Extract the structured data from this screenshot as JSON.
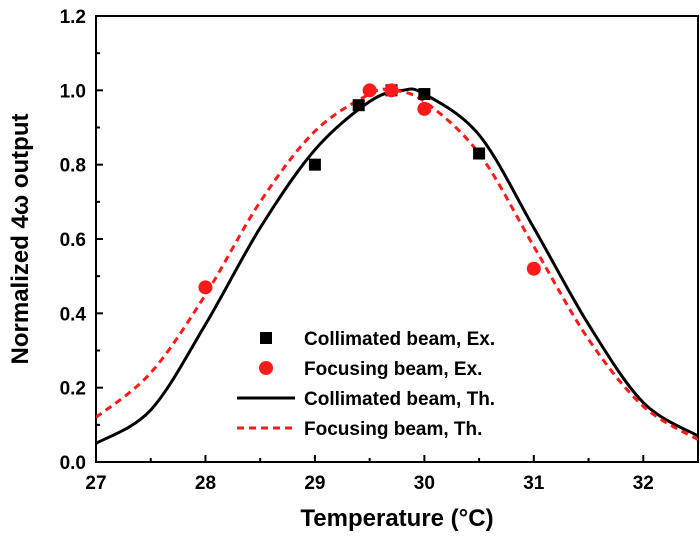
{
  "chart_data": {
    "type": "scatter",
    "title": "",
    "xlabel": "Temperature (°C)",
    "ylabel": "Normalized 4ω output",
    "xlim": [
      27,
      32.5
    ],
    "ylim": [
      0.0,
      1.2
    ],
    "x_ticks": [
      "27",
      "28",
      "29",
      "30",
      "31",
      "32"
    ],
    "y_ticks": [
      "0.0",
      "0.2",
      "0.4",
      "0.6",
      "0.8",
      "1.0",
      "1.2"
    ],
    "grid": false,
    "legend_position": "bottom-center",
    "series": [
      {
        "name": "Collimated beam, Ex.",
        "kind": "points",
        "marker": "square",
        "color": "#000000",
        "points": [
          {
            "x": 29.0,
            "y": 0.8
          },
          {
            "x": 29.4,
            "y": 0.96
          },
          {
            "x": 29.7,
            "y": 1.0
          },
          {
            "x": 30.0,
            "y": 0.99
          },
          {
            "x": 30.5,
            "y": 0.83
          }
        ]
      },
      {
        "name": "Focusing beam, Ex.",
        "kind": "points",
        "marker": "circle",
        "color": "#ff1a1a",
        "points": [
          {
            "x": 28.0,
            "y": 0.47
          },
          {
            "x": 29.5,
            "y": 1.0
          },
          {
            "x": 29.7,
            "y": 1.0
          },
          {
            "x": 30.0,
            "y": 0.95
          },
          {
            "x": 31.0,
            "y": 0.52
          }
        ]
      },
      {
        "name": "Collimated beam, Th.",
        "kind": "line",
        "style": "solid",
        "color": "#000000",
        "points": [
          {
            "x": 27.0,
            "y": 0.05
          },
          {
            "x": 27.5,
            "y": 0.14
          },
          {
            "x": 28.0,
            "y": 0.37
          },
          {
            "x": 28.5,
            "y": 0.63
          },
          {
            "x": 29.0,
            "y": 0.84
          },
          {
            "x": 29.5,
            "y": 0.97
          },
          {
            "x": 29.8,
            "y": 1.0
          },
          {
            "x": 30.0,
            "y": 0.99
          },
          {
            "x": 30.5,
            "y": 0.88
          },
          {
            "x": 31.0,
            "y": 0.63
          },
          {
            "x": 31.5,
            "y": 0.37
          },
          {
            "x": 32.0,
            "y": 0.16
          },
          {
            "x": 32.5,
            "y": 0.07
          }
        ]
      },
      {
        "name": "Focusing beam, Th.",
        "kind": "line",
        "style": "dashed",
        "color": "#ff1a1a",
        "points": [
          {
            "x": 27.0,
            "y": 0.12
          },
          {
            "x": 27.5,
            "y": 0.24
          },
          {
            "x": 28.0,
            "y": 0.45
          },
          {
            "x": 28.5,
            "y": 0.7
          },
          {
            "x": 29.0,
            "y": 0.89
          },
          {
            "x": 29.5,
            "y": 0.99
          },
          {
            "x": 29.7,
            "y": 1.0
          },
          {
            "x": 30.0,
            "y": 0.97
          },
          {
            "x": 30.5,
            "y": 0.83
          },
          {
            "x": 31.0,
            "y": 0.58
          },
          {
            "x": 31.5,
            "y": 0.33
          },
          {
            "x": 32.0,
            "y": 0.15
          },
          {
            "x": 32.5,
            "y": 0.06
          }
        ]
      }
    ]
  }
}
